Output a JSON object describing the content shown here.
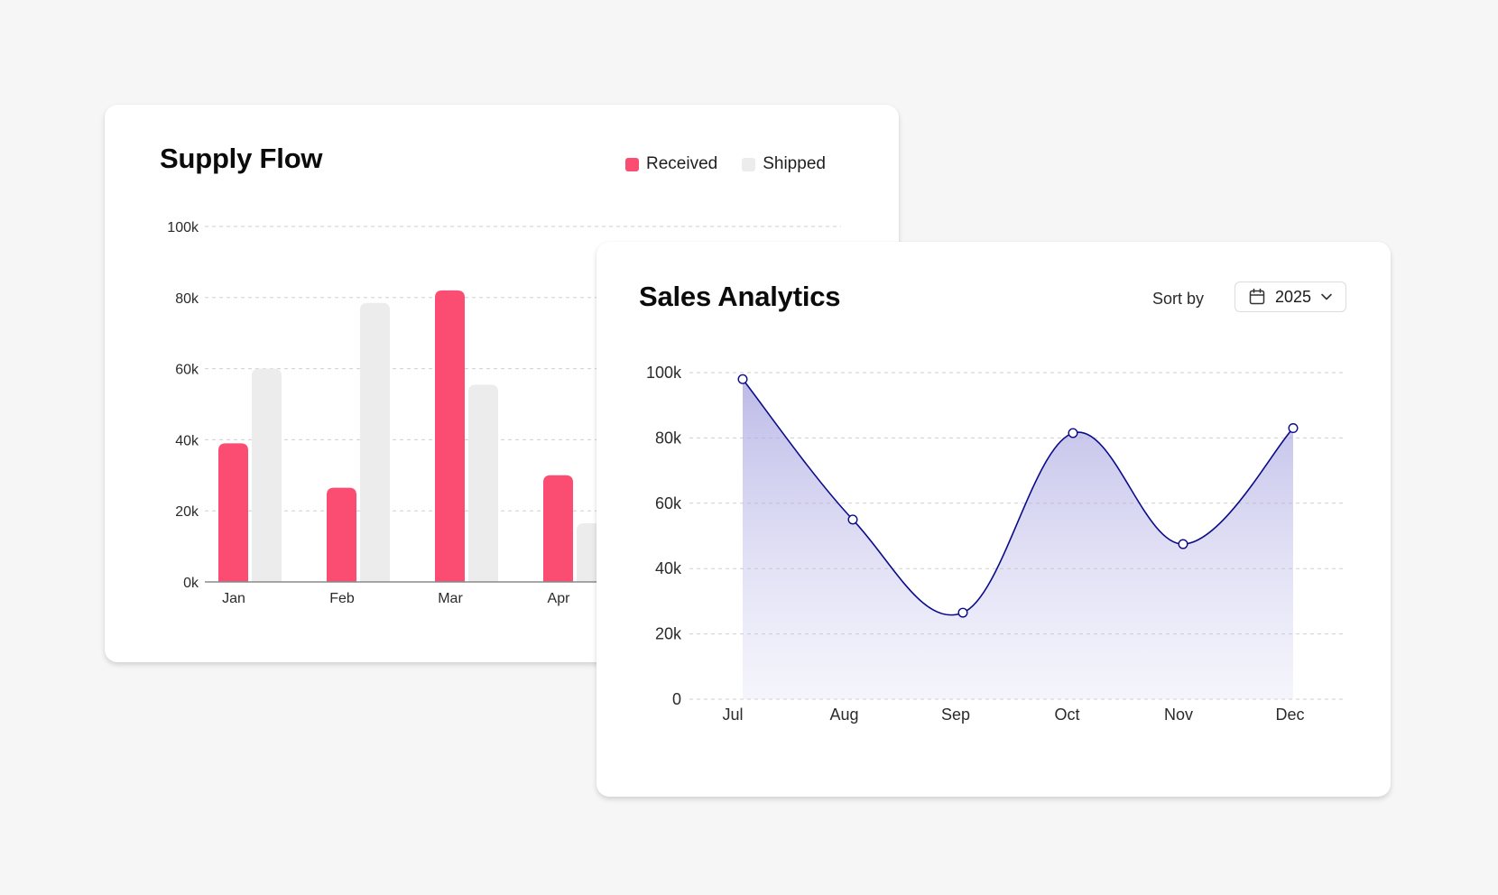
{
  "chart_data": [
    {
      "type": "bar",
      "title": "Supply Flow",
      "categories": [
        "Jan",
        "Feb",
        "Mar",
        "Apr"
      ],
      "series": [
        {
          "name": "Received",
          "values": [
            39,
            26.5,
            82,
            30
          ],
          "color": "#fb4d72"
        },
        {
          "name": "Shipped",
          "values": [
            60,
            78.5,
            55.5,
            16.5
          ],
          "color": "#ececec"
        }
      ],
      "yticks": [
        "0k",
        "20k",
        "40k",
        "60k",
        "80k",
        "100k"
      ],
      "ylim": [
        0,
        100
      ],
      "y_unit": "thousands",
      "grid": true,
      "legend": "top-right"
    },
    {
      "type": "area",
      "title": "Sales Analytics",
      "x": [
        "Jul",
        "Aug",
        "Sep",
        "Oct",
        "Nov",
        "Dec"
      ],
      "series": [
        {
          "values": [
            98,
            55,
            26.5,
            81.5,
            47.5,
            83
          ],
          "color": "#0b0b8a"
        }
      ],
      "yticks": [
        "0",
        "20k",
        "40k",
        "60k",
        "80k",
        "100k"
      ],
      "ylim": [
        0,
        100
      ],
      "y_unit": "thousands",
      "grid": true
    }
  ],
  "sales_controls": {
    "sort_label": "Sort by",
    "year": "2025",
    "icons": [
      "calendar-icon",
      "chevron-down-icon"
    ]
  }
}
